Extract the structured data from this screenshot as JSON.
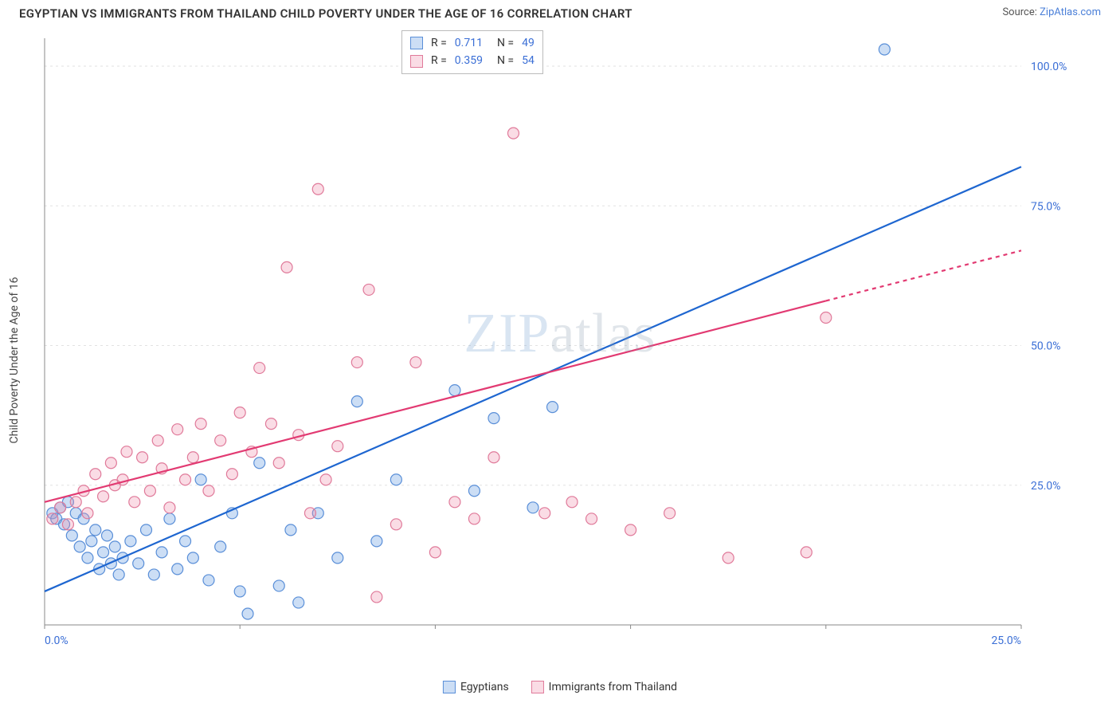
{
  "title": "EGYPTIAN VS IMMIGRANTS FROM THAILAND CHILD POVERTY UNDER THE AGE OF 16 CORRELATION CHART",
  "source_label": "Source:",
  "source_name": "ZipAtlas.com",
  "ylabel": "Child Poverty Under the Age of 16",
  "watermark_a": "ZIP",
  "watermark_b": "atlas",
  "chart": {
    "type": "scatter-with-regression",
    "plot_bg": "#ffffff",
    "grid_color": "#e2e2e2",
    "axis_color": "#888888",
    "tick_label_color": "#3b6fd6",
    "tick_font_size": 14,
    "xlim": [
      0,
      25
    ],
    "ylim": [
      0,
      105
    ],
    "xticks": [
      0,
      25
    ],
    "xtick_labels": [
      "0.0%",
      "25.0%"
    ],
    "yticks": [
      25,
      50,
      75,
      100
    ],
    "ytick_labels": [
      "25.0%",
      "50.0%",
      "75.0%",
      "100.0%"
    ],
    "marker_radius": 7,
    "marker_stroke_width": 1.2,
    "line_width": 2.2,
    "series": [
      {
        "key": "egyptians",
        "label": "Egyptians",
        "fill": "rgba(110,160,225,0.35)",
        "stroke": "#5a8fd8",
        "line_color": "#1e66d0",
        "R": "0.711",
        "N": "49",
        "reg_x1": 0,
        "reg_y1": 6,
        "reg_x2": 25,
        "reg_y2": 82,
        "reg_dash_from_x": 25,
        "points": [
          [
            0.2,
            20
          ],
          [
            0.3,
            19
          ],
          [
            0.4,
            21
          ],
          [
            0.5,
            18
          ],
          [
            0.6,
            22
          ],
          [
            0.7,
            16
          ],
          [
            0.8,
            20
          ],
          [
            0.9,
            14
          ],
          [
            1.0,
            19
          ],
          [
            1.1,
            12
          ],
          [
            1.2,
            15
          ],
          [
            1.3,
            17
          ],
          [
            1.4,
            10
          ],
          [
            1.5,
            13
          ],
          [
            1.6,
            16
          ],
          [
            1.7,
            11
          ],
          [
            1.8,
            14
          ],
          [
            1.9,
            9
          ],
          [
            2.0,
            12
          ],
          [
            2.2,
            15
          ],
          [
            2.4,
            11
          ],
          [
            2.6,
            17
          ],
          [
            2.8,
            9
          ],
          [
            3.0,
            13
          ],
          [
            3.2,
            19
          ],
          [
            3.4,
            10
          ],
          [
            3.6,
            15
          ],
          [
            3.8,
            12
          ],
          [
            4.0,
            26
          ],
          [
            4.2,
            8
          ],
          [
            4.5,
            14
          ],
          [
            4.8,
            20
          ],
          [
            5.0,
            6
          ],
          [
            5.2,
            2
          ],
          [
            5.5,
            29
          ],
          [
            6.0,
            7
          ],
          [
            6.3,
            17
          ],
          [
            6.5,
            4
          ],
          [
            7.0,
            20
          ],
          [
            7.5,
            12
          ],
          [
            8.0,
            40
          ],
          [
            8.5,
            15
          ],
          [
            9.0,
            26
          ],
          [
            10.5,
            42
          ],
          [
            11.0,
            24
          ],
          [
            11.5,
            37
          ],
          [
            12.5,
            21
          ],
          [
            13.0,
            39
          ],
          [
            21.5,
            103
          ]
        ]
      },
      {
        "key": "thailand",
        "label": "Immigrants from Thailand",
        "fill": "rgba(240,140,170,0.30)",
        "stroke": "#e07a9a",
        "line_color": "#e23a72",
        "R": "0.359",
        "N": "54",
        "reg_x1": 0,
        "reg_y1": 22,
        "reg_x2": 25,
        "reg_y2": 67,
        "reg_dash_from_x": 20,
        "points": [
          [
            0.2,
            19
          ],
          [
            0.4,
            21
          ],
          [
            0.6,
            18
          ],
          [
            0.8,
            22
          ],
          [
            1.0,
            24
          ],
          [
            1.1,
            20
          ],
          [
            1.3,
            27
          ],
          [
            1.5,
            23
          ],
          [
            1.7,
            29
          ],
          [
            1.8,
            25
          ],
          [
            2.0,
            26
          ],
          [
            2.1,
            31
          ],
          [
            2.3,
            22
          ],
          [
            2.5,
            30
          ],
          [
            2.7,
            24
          ],
          [
            2.9,
            33
          ],
          [
            3.0,
            28
          ],
          [
            3.2,
            21
          ],
          [
            3.4,
            35
          ],
          [
            3.6,
            26
          ],
          [
            3.8,
            30
          ],
          [
            4.0,
            36
          ],
          [
            4.2,
            24
          ],
          [
            4.5,
            33
          ],
          [
            4.8,
            27
          ],
          [
            5.0,
            38
          ],
          [
            5.3,
            31
          ],
          [
            5.5,
            46
          ],
          [
            5.8,
            36
          ],
          [
            6.0,
            29
          ],
          [
            6.2,
            64
          ],
          [
            6.5,
            34
          ],
          [
            6.8,
            20
          ],
          [
            7.0,
            78
          ],
          [
            7.2,
            26
          ],
          [
            7.5,
            32
          ],
          [
            8.0,
            47
          ],
          [
            8.3,
            60
          ],
          [
            8.5,
            5
          ],
          [
            9.0,
            18
          ],
          [
            9.5,
            47
          ],
          [
            10.0,
            13
          ],
          [
            10.5,
            22
          ],
          [
            11.0,
            19
          ],
          [
            11.5,
            30
          ],
          [
            12.0,
            88
          ],
          [
            12.8,
            20
          ],
          [
            13.5,
            22
          ],
          [
            14.0,
            19
          ],
          [
            15.0,
            17
          ],
          [
            16.0,
            20
          ],
          [
            17.5,
            12
          ],
          [
            19.5,
            13
          ],
          [
            20.0,
            55
          ]
        ]
      }
    ],
    "legend_swatch_border": {
      "egyptians": "#5a8fd8",
      "thailand": "#e07a9a"
    },
    "legend_swatch_fill": {
      "egyptians": "rgba(110,160,225,0.35)",
      "thailand": "rgba(240,140,170,0.30)"
    }
  },
  "corr_box": {
    "labels": {
      "R": "R  =",
      "N": "N  ="
    }
  }
}
